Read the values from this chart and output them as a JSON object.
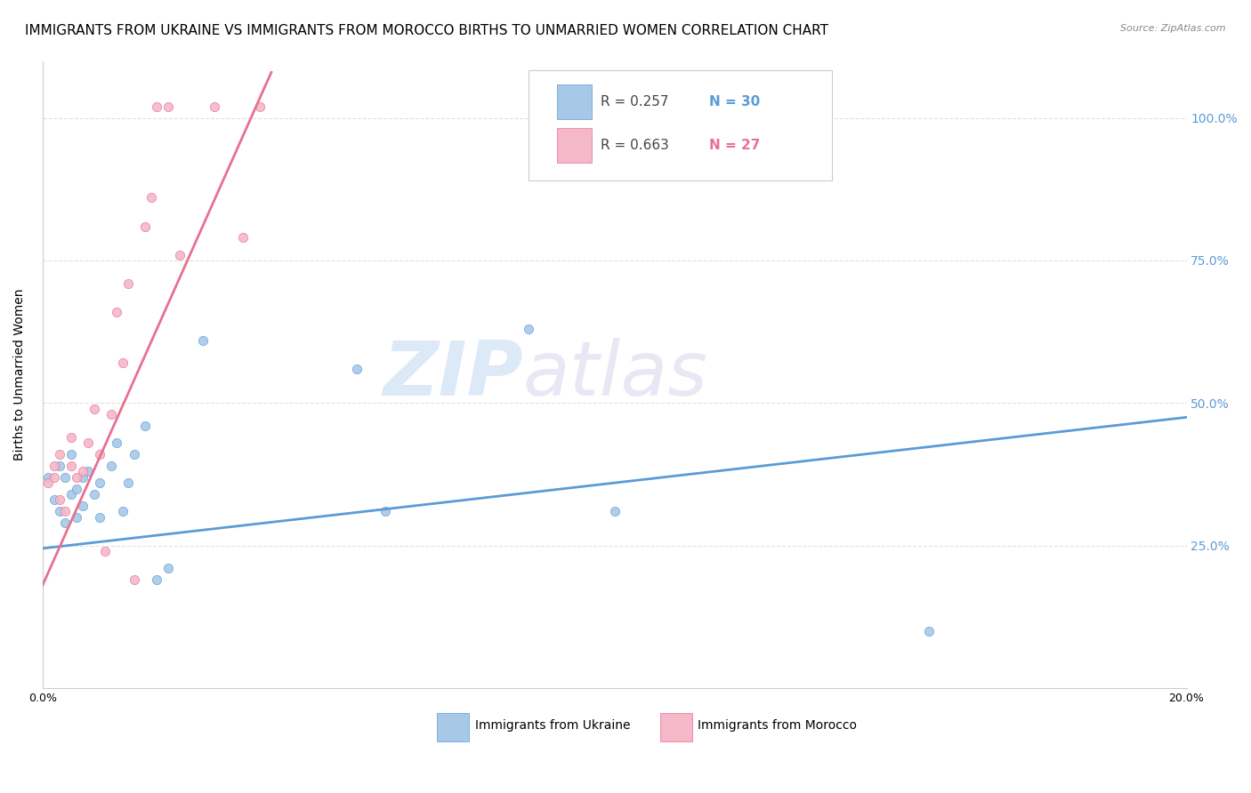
{
  "title": "IMMIGRANTS FROM UKRAINE VS IMMIGRANTS FROM MOROCCO BIRTHS TO UNMARRIED WOMEN CORRELATION CHART",
  "source": "Source: ZipAtlas.com",
  "xlabel_ukraine": "Immigrants from Ukraine",
  "xlabel_morocco": "Immigrants from Morocco",
  "ylabel": "Births to Unmarried Women",
  "watermark_zip": "ZIP",
  "watermark_atlas": "atlas",
  "x_min": 0.0,
  "x_max": 0.2,
  "y_min": 0.0,
  "y_max": 1.1,
  "y_ticks": [
    0.25,
    0.5,
    0.75,
    1.0
  ],
  "y_tick_labels": [
    "25.0%",
    "50.0%",
    "75.0%",
    "100.0%"
  ],
  "x_ticks": [
    0.0,
    0.04,
    0.08,
    0.12,
    0.16,
    0.2
  ],
  "x_tick_labels": [
    "0.0%",
    "",
    "",
    "",
    "",
    "20.0%"
  ],
  "ukraine_color": "#a8c8e8",
  "ukraine_color_dark": "#5b9bd5",
  "morocco_color": "#f4b8c8",
  "morocco_color_dark": "#e87090",
  "legend_ukraine_R": "R = 0.257",
  "legend_ukraine_N": "N = 30",
  "legend_morocco_R": "R = 0.663",
  "legend_morocco_N": "N = 27",
  "ukraine_scatter_x": [
    0.001,
    0.002,
    0.003,
    0.003,
    0.004,
    0.004,
    0.005,
    0.005,
    0.006,
    0.006,
    0.007,
    0.007,
    0.008,
    0.009,
    0.01,
    0.01,
    0.012,
    0.013,
    0.014,
    0.015,
    0.016,
    0.018,
    0.02,
    0.022,
    0.028,
    0.055,
    0.06,
    0.085,
    0.1,
    0.155
  ],
  "ukraine_scatter_y": [
    0.37,
    0.33,
    0.31,
    0.39,
    0.29,
    0.37,
    0.34,
    0.41,
    0.3,
    0.35,
    0.37,
    0.32,
    0.38,
    0.34,
    0.36,
    0.3,
    0.39,
    0.43,
    0.31,
    0.36,
    0.41,
    0.46,
    0.19,
    0.21,
    0.61,
    0.56,
    0.31,
    0.63,
    0.31,
    0.1
  ],
  "morocco_scatter_x": [
    0.001,
    0.002,
    0.002,
    0.003,
    0.003,
    0.004,
    0.005,
    0.005,
    0.006,
    0.007,
    0.008,
    0.009,
    0.01,
    0.011,
    0.012,
    0.013,
    0.014,
    0.015,
    0.016,
    0.018,
    0.019,
    0.02,
    0.022,
    0.024,
    0.03,
    0.035,
    0.038
  ],
  "morocco_scatter_y": [
    0.36,
    0.39,
    0.37,
    0.33,
    0.41,
    0.31,
    0.44,
    0.39,
    0.37,
    0.38,
    0.43,
    0.49,
    0.41,
    0.24,
    0.48,
    0.66,
    0.57,
    0.71,
    0.19,
    0.81,
    0.86,
    1.02,
    1.02,
    0.76,
    1.02,
    0.79,
    1.02
  ],
  "ukraine_trendline_x": [
    0.0,
    0.2
  ],
  "ukraine_trendline_y": [
    0.245,
    0.475
  ],
  "morocco_trendline_x": [
    0.0,
    0.04
  ],
  "morocco_trendline_y": [
    0.18,
    1.08
  ],
  "background_color": "#ffffff",
  "grid_color": "#e0e0e0",
  "title_fontsize": 11,
  "axis_label_fontsize": 10,
  "tick_fontsize": 9,
  "legend_fontsize": 11,
  "scatter_size": 55,
  "right_axis_color": "#5b9bd5"
}
